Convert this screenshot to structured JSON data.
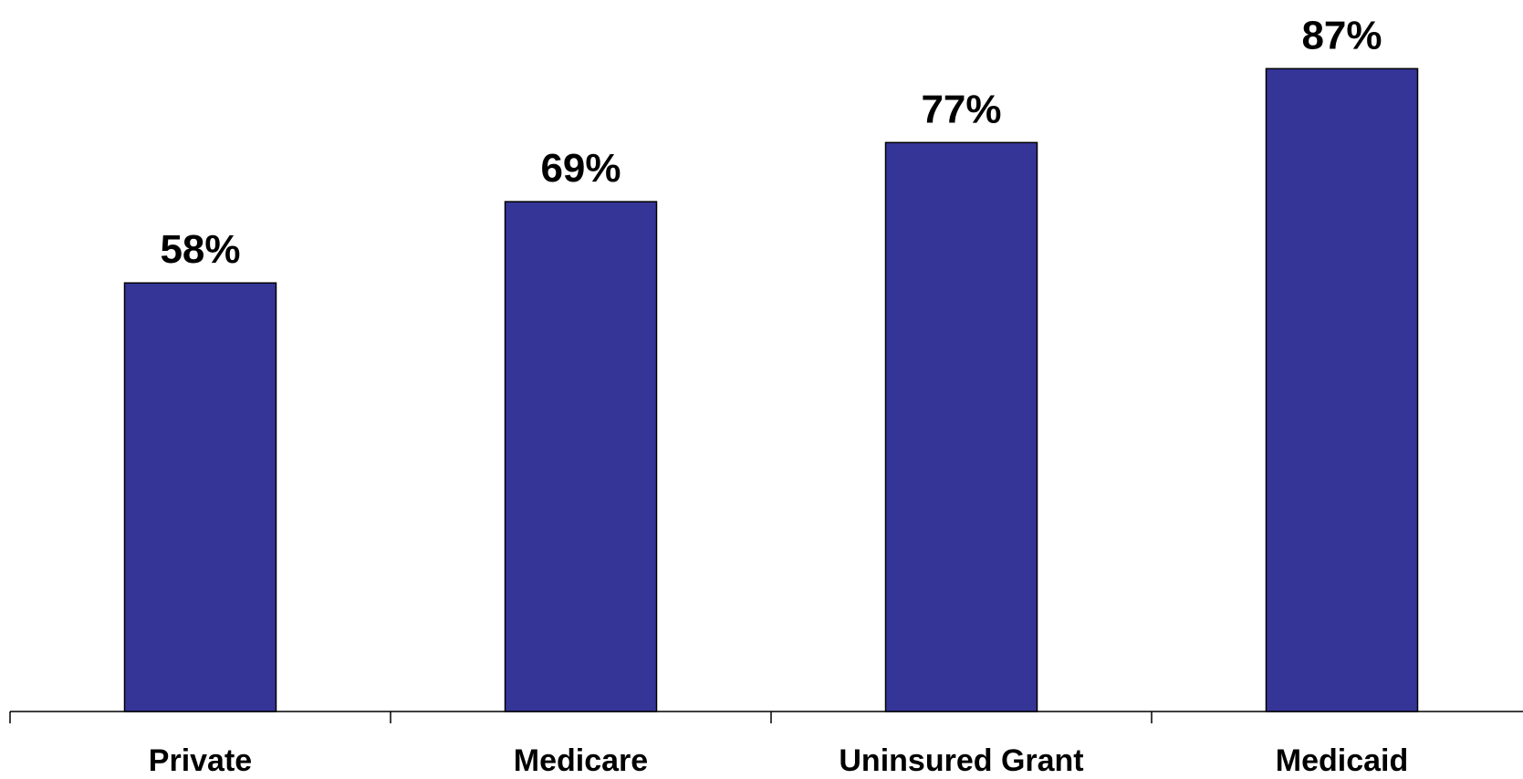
{
  "chart_data": {
    "type": "bar",
    "categories": [
      "Private",
      "Medicare",
      "Uninsured Grant",
      "Medicaid"
    ],
    "values": [
      58,
      69,
      77,
      87
    ],
    "data_labels": [
      "58%",
      "69%",
      "77%",
      "87%"
    ],
    "title": "",
    "xlabel": "",
    "ylabel": "",
    "ylim": [
      0,
      100
    ],
    "grid": false,
    "legend": "none",
    "colors": {
      "bar_fill": "#353598",
      "bar_stroke": "#000000",
      "axis": "#000000"
    }
  }
}
